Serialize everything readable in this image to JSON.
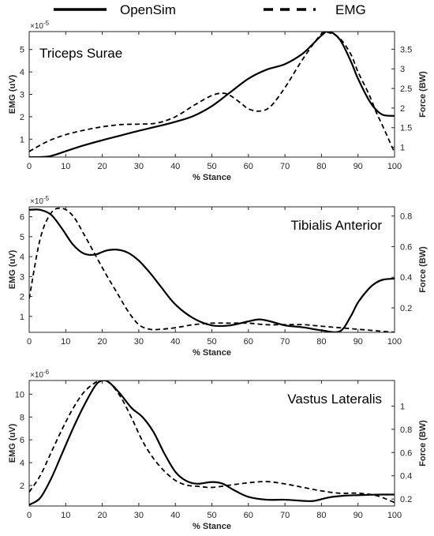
{
  "legend": [
    {
      "label": "OpenSim",
      "style": "solid"
    },
    {
      "label": "EMG",
      "style": "dashed"
    }
  ],
  "chart_data": [
    {
      "type": "line",
      "title": "Triceps Surae",
      "xlabel": "% Stance",
      "ylabel_left": "EMG (uV)",
      "ylabel_right": "Force (BW)",
      "left_exponent": "×10",
      "left_exponent_power": "-5",
      "xlim": [
        0,
        100
      ],
      "xticks": [
        "0",
        "10",
        "20",
        "30",
        "40",
        "50",
        "60",
        "70",
        "80",
        "90",
        "100"
      ],
      "ylim_left": [
        0.2,
        5.8
      ],
      "yticks_left": [
        "1",
        "2",
        "3",
        "4",
        "5"
      ],
      "ylim_right": [
        0.75,
        3.95
      ],
      "yticks_right": [
        "1",
        "1.5",
        "2",
        "2.5",
        "3",
        "3.5"
      ],
      "series": [
        {
          "name": "OpenSim",
          "style": "solid",
          "axis": "right",
          "x": [
            0,
            3,
            6,
            10,
            15,
            20,
            25,
            30,
            35,
            40,
            45,
            50,
            55,
            60,
            65,
            70,
            75,
            80,
            82,
            85,
            88,
            90,
            93,
            95,
            97,
            100
          ],
          "y": [
            0.75,
            0.75,
            0.78,
            0.9,
            1.05,
            1.18,
            1.3,
            1.42,
            1.53,
            1.65,
            1.8,
            2.05,
            2.4,
            2.75,
            2.98,
            3.12,
            3.4,
            3.85,
            3.95,
            3.75,
            3.2,
            2.75,
            2.2,
            1.95,
            1.82,
            1.8
          ]
        },
        {
          "name": "EMG",
          "style": "dashed",
          "axis": "left",
          "x": [
            0,
            5,
            10,
            15,
            20,
            25,
            30,
            35,
            40,
            45,
            50,
            53,
            55,
            58,
            60,
            63,
            66,
            70,
            75,
            80,
            82,
            85,
            88,
            90,
            93,
            95,
            97,
            100
          ],
          "y": [
            0.45,
            0.9,
            1.2,
            1.4,
            1.55,
            1.65,
            1.67,
            1.72,
            2.0,
            2.5,
            2.95,
            3.05,
            2.95,
            2.6,
            2.35,
            2.25,
            2.45,
            3.3,
            4.6,
            5.7,
            5.75,
            5.5,
            4.8,
            4.0,
            3.0,
            2.2,
            1.5,
            0.4
          ]
        }
      ]
    },
    {
      "type": "line",
      "title": "Tibialis Anterior",
      "xlabel": "% Stance",
      "ylabel_left": "EMG (uV)",
      "ylabel_right": "Force (BW)",
      "left_exponent": "×10",
      "left_exponent_power": "-5",
      "xlim": [
        0,
        100
      ],
      "xticks": [
        "0",
        "10",
        "20",
        "30",
        "40",
        "50",
        "60",
        "70",
        "80",
        "90",
        "100"
      ],
      "ylim_left": [
        0.2,
        6.5
      ],
      "yticks_left": [
        "1",
        "2",
        "3",
        "4",
        "5",
        "6"
      ],
      "ylim_right": [
        0.04,
        0.86
      ],
      "yticks_right": [
        "0.2",
        "0.4",
        "0.6",
        "0.8"
      ],
      "series": [
        {
          "name": "OpenSim",
          "style": "solid",
          "axis": "left",
          "x": [
            0,
            3,
            6,
            9,
            12,
            15,
            18,
            21,
            24,
            27,
            30,
            33,
            36,
            40,
            45,
            50,
            55,
            60,
            63,
            66,
            70,
            75,
            80,
            85,
            88,
            90,
            93,
            95,
            97,
            100
          ],
          "y": [
            6.35,
            6.35,
            6.1,
            5.4,
            4.6,
            4.15,
            4.1,
            4.3,
            4.35,
            4.2,
            3.8,
            3.2,
            2.5,
            1.6,
            0.9,
            0.55,
            0.55,
            0.75,
            0.85,
            0.75,
            0.55,
            0.45,
            0.3,
            0.25,
            1.0,
            1.7,
            2.4,
            2.7,
            2.85,
            2.9
          ]
        },
        {
          "name": "EMG",
          "style": "dashed",
          "axis": "right",
          "x": [
            0,
            3,
            6,
            9,
            12,
            15,
            18,
            21,
            24,
            27,
            30,
            33,
            36,
            40,
            45,
            50,
            55,
            60,
            65,
            70,
            75,
            80,
            85,
            90,
            95,
            100
          ],
          "y": [
            0.26,
            0.65,
            0.82,
            0.85,
            0.8,
            0.68,
            0.55,
            0.42,
            0.3,
            0.18,
            0.09,
            0.06,
            0.06,
            0.07,
            0.09,
            0.1,
            0.1,
            0.1,
            0.09,
            0.09,
            0.09,
            0.08,
            0.07,
            0.06,
            0.05,
            0.04
          ]
        }
      ]
    },
    {
      "type": "line",
      "title": "Vastus Lateralis",
      "xlabel": "% Stance",
      "ylabel_left": "EMG (uV)",
      "ylabel_right": "Force (BW)",
      "left_exponent": "×10",
      "left_exponent_power": "-6",
      "xlim": [
        0,
        100
      ],
      "xticks": [
        "0",
        "10",
        "20",
        "30",
        "40",
        "50",
        "60",
        "70",
        "80",
        "90",
        "100"
      ],
      "ylim_left": [
        0.2,
        11.2
      ],
      "yticks_left": [
        "2",
        "4",
        "6",
        "8",
        "10"
      ],
      "ylim_right": [
        0.14,
        1.22
      ],
      "yticks_right": [
        "0.2",
        "0.4",
        "0.6",
        "0.8",
        "1"
      ],
      "series": [
        {
          "name": "OpenSim",
          "style": "solid",
          "axis": "left",
          "x": [
            0,
            3,
            6,
            9,
            12,
            15,
            18,
            20,
            22,
            25,
            28,
            31,
            34,
            37,
            40,
            43,
            46,
            50,
            53,
            56,
            60,
            65,
            70,
            75,
            78,
            82,
            86,
            90,
            95,
            100
          ],
          "y": [
            0.3,
            0.9,
            2.6,
            4.8,
            7.0,
            9.0,
            10.7,
            11.2,
            11.0,
            10.0,
            8.8,
            8.0,
            6.7,
            4.8,
            3.2,
            2.4,
            2.15,
            2.3,
            2.15,
            1.6,
            1.0,
            0.75,
            0.75,
            0.65,
            0.65,
            0.95,
            1.1,
            1.15,
            1.2,
            1.2
          ]
        },
        {
          "name": "EMG",
          "style": "dashed",
          "axis": "right",
          "x": [
            0,
            3,
            6,
            9,
            12,
            15,
            18,
            20,
            22,
            25,
            28,
            31,
            34,
            37,
            40,
            43,
            46,
            50,
            55,
            60,
            65,
            70,
            75,
            80,
            85,
            90,
            95,
            100
          ],
          "y": [
            0.26,
            0.4,
            0.6,
            0.8,
            0.98,
            1.12,
            1.2,
            1.22,
            1.2,
            1.08,
            0.9,
            0.7,
            0.55,
            0.44,
            0.36,
            0.32,
            0.31,
            0.3,
            0.32,
            0.34,
            0.35,
            0.33,
            0.3,
            0.27,
            0.25,
            0.25,
            0.23,
            0.17
          ]
        }
      ]
    }
  ]
}
